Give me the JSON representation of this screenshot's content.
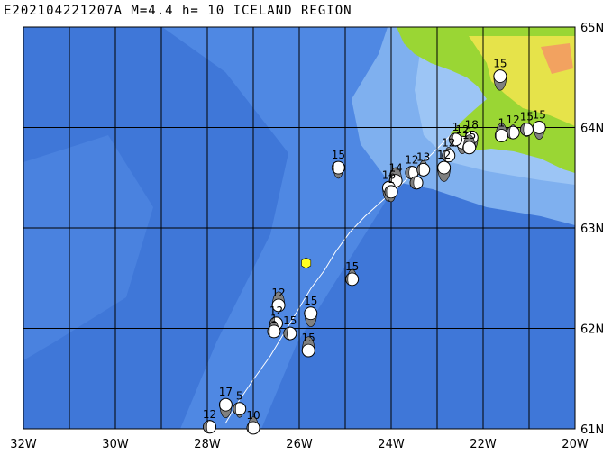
{
  "title": "E202104221207A M=4.4 h= 10 ICELAND REGION",
  "lon_labels": [
    "32W",
    "30W",
    "28W",
    "26W",
    "24W",
    "22W",
    "20W"
  ],
  "lat_labels": [
    "65N",
    "64N",
    "63N",
    "62N",
    "61N"
  ],
  "colors": {
    "ocean_deep": "#3f77d8",
    "ocean_mid": "#4f88e3",
    "shelf": "#7fb0ef",
    "shelf_light": "#9cc5f5",
    "land_low": "#9ad634",
    "land_mid": "#e6e34a",
    "land_high": "#f2a260",
    "ridge": "#ffffff",
    "epicenter": "#ffff22",
    "beachball_dark": "#808080"
  },
  "events": [
    {
      "label": "15",
      "lon": -21.63,
      "lat": 64.51
    },
    {
      "label": "15",
      "lon": -20.78,
      "lat": 64.0
    },
    {
      "label": "15",
      "lon": -21.05,
      "lat": 63.98
    },
    {
      "label": "12",
      "lon": -21.35,
      "lat": 63.95
    },
    {
      "label": "1",
      "lon": -21.6,
      "lat": 63.92
    },
    {
      "label": "18",
      "lon": -22.25,
      "lat": 63.9
    },
    {
      "label": "12",
      "lon": -22.45,
      "lat": 63.85
    },
    {
      "label": "1",
      "lon": -22.6,
      "lat": 63.88
    },
    {
      "label": "12",
      "lon": -22.75,
      "lat": 63.72
    },
    {
      "label": "15",
      "lon": -22.3,
      "lat": 63.8
    },
    {
      "label": "12",
      "lon": -22.85,
      "lat": 63.6
    },
    {
      "label": "15",
      "lon": -25.15,
      "lat": 63.6
    },
    {
      "label": "12",
      "lon": -23.55,
      "lat": 63.55
    },
    {
      "label": "13",
      "lon": -23.3,
      "lat": 63.58
    },
    {
      "label": "14",
      "lon": -23.9,
      "lat": 63.47
    },
    {
      "label": "16",
      "lon": -24.05,
      "lat": 63.4
    },
    {
      "label": "1",
      "lon": -24.0,
      "lat": 63.36
    },
    {
      "label": "",
      "lon": -23.45,
      "lat": 63.45
    },
    {
      "label": "15",
      "lon": -24.85,
      "lat": 62.49
    },
    {
      "label": "12",
      "lon": -26.45,
      "lat": 62.23
    },
    {
      "label": "15",
      "lon": -25.75,
      "lat": 62.15
    },
    {
      "label": "12",
      "lon": -26.5,
      "lat": 62.05
    },
    {
      "label": "15",
      "lon": -26.2,
      "lat": 61.95
    },
    {
      "label": "1",
      "lon": -26.55,
      "lat": 61.97
    },
    {
      "label": "15",
      "lon": -25.8,
      "lat": 61.78
    },
    {
      "label": "17",
      "lon": -27.6,
      "lat": 61.24
    },
    {
      "label": "5",
      "lon": -27.3,
      "lat": 61.2
    },
    {
      "label": "12",
      "lon": -27.95,
      "lat": 61.02
    },
    {
      "label": "10",
      "lon": -27.0,
      "lat": 61.01
    }
  ],
  "epicenter": {
    "lon": -25.85,
    "lat": 62.65
  }
}
